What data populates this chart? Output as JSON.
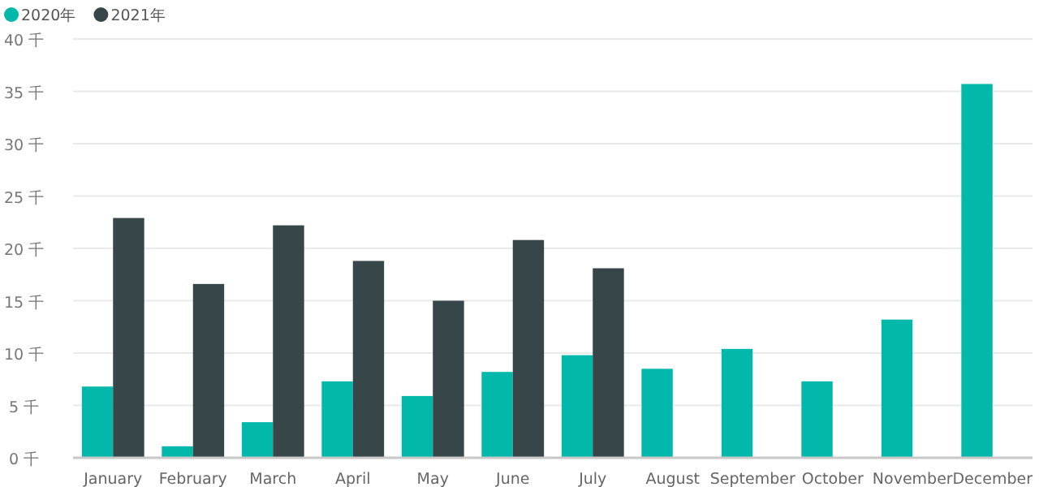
{
  "chart_data": {
    "type": "bar",
    "categories": [
      "January",
      "February",
      "March",
      "April",
      "May",
      "June",
      "July",
      "August",
      "September",
      "October",
      "November",
      "December"
    ],
    "series": [
      {
        "name": "2020年",
        "color": "#01b8aa",
        "values": [
          6.8,
          1.1,
          3.4,
          7.3,
          5.9,
          8.2,
          9.8,
          8.5,
          10.4,
          7.3,
          13.2,
          35.7
        ]
      },
      {
        "name": "2021年",
        "color": "#374649",
        "values": [
          22.9,
          16.6,
          22.2,
          18.8,
          15.0,
          20.8,
          18.1,
          null,
          null,
          null,
          null,
          null
        ]
      }
    ],
    "ylim": [
      0,
      40
    ],
    "yticks": [
      {
        "value": 0,
        "label": "0 千"
      },
      {
        "value": 5,
        "label": "5 千"
      },
      {
        "value": 10,
        "label": "10 千"
      },
      {
        "value": 15,
        "label": "15 千"
      },
      {
        "value": 20,
        "label": "20 千"
      },
      {
        "value": 25,
        "label": "25 千"
      },
      {
        "value": 30,
        "label": "30 千"
      },
      {
        "value": 35,
        "label": "35 千"
      },
      {
        "value": 40,
        "label": "40 千"
      }
    ],
    "grid": "y",
    "legend": "top left"
  }
}
